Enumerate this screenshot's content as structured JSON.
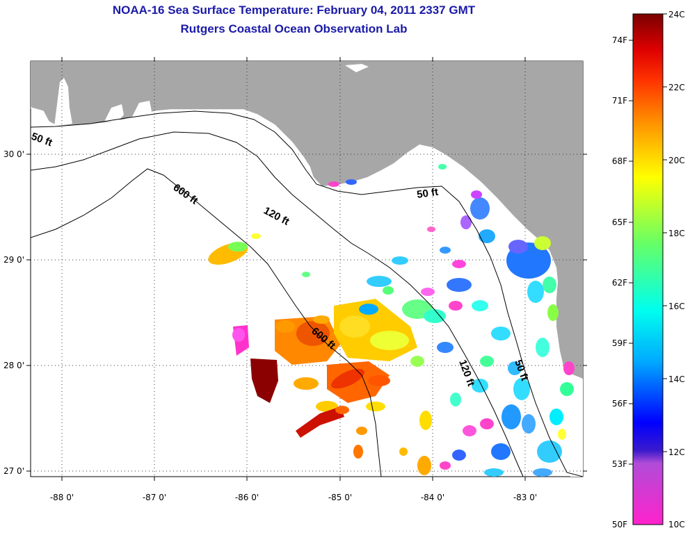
{
  "title": {
    "line1": "NOAA-16 Sea Surface Temperature:  February 04, 2011 2337 GMT",
    "line2": "Rutgers Coastal Ocean Observation Lab"
  },
  "axes": {
    "x_ticks": [
      "-88 0'",
      "-87 0'",
      "-86 0'",
      "-85 0'",
      "-84 0'",
      "-83 0'"
    ],
    "y_ticks": [
      "30 0'",
      "29 0'",
      "28 0'",
      "27 0'"
    ]
  },
  "colorbar": {
    "fahrenheit": [
      "74F",
      "71F",
      "68F",
      "65F",
      "62F",
      "59F",
      "56F",
      "53F",
      "50F"
    ],
    "celsius": [
      "24C",
      "22C",
      "20C",
      "18C",
      "16C",
      "14C",
      "12C",
      "10C"
    ],
    "colors": [
      "#ff22cc",
      "#8a2be2",
      "#0000ff",
      "#00aaff",
      "#00ffee",
      "#66ff66",
      "#ffff00",
      "#ff9900",
      "#ff3300",
      "#cc0000",
      "#7a0000"
    ]
  },
  "contours": {
    "fifty_ft": "50 ft",
    "one_twenty_ft": "120 ft",
    "six_hundred_ft": "600 ft"
  },
  "colors": {
    "land": "#a7a7a7",
    "title": "#1a1aa8",
    "water": "#ffffff"
  }
}
